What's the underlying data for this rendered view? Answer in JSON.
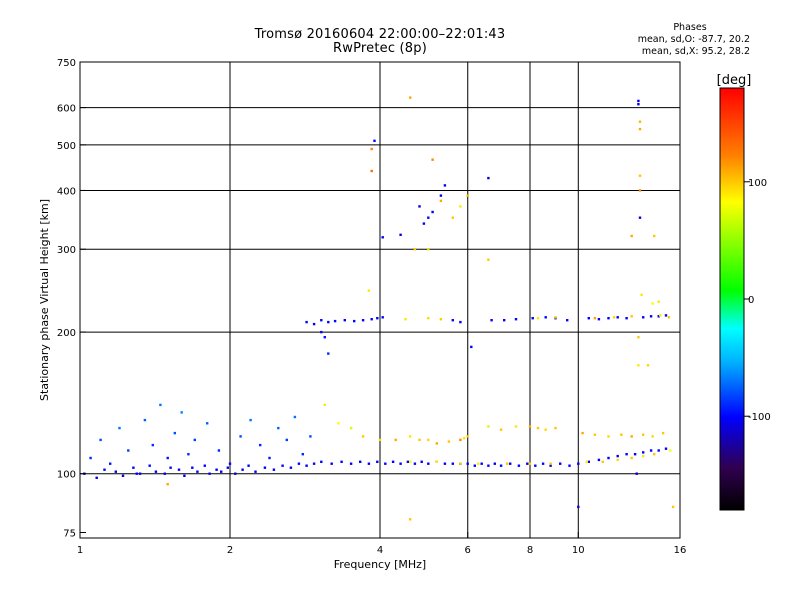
{
  "chart_data": {
    "type": "scatter",
    "title": "Tromsø 20160604 22:00:00–22:01:43",
    "subtitle": "RwPretec (8p)",
    "xlabel": "Frequency [MHz]",
    "ylabel": "Stationary phase Virtual Height [km]",
    "xscale": "log",
    "yscale": "log",
    "xlim": [
      1,
      16
    ],
    "ylim": [
      73,
      750
    ],
    "x_ticks": [
      1,
      2,
      4,
      6,
      8,
      10,
      16
    ],
    "y_ticks": [
      75,
      100,
      200,
      300,
      400,
      500,
      600,
      750
    ],
    "grid": true,
    "colorbar": {
      "label": "[deg]",
      "range": [
        -180,
        180
      ],
      "ticks": [
        -100,
        0,
        100
      ],
      "colormap": "rainbow"
    },
    "stats": {
      "header": "Phases",
      "o_label": "mean, sd,O:",
      "o_values": "-87.7, 20.2",
      "x_label": "mean, sd,X:",
      "x_values": "95.2, 28.2"
    },
    "series": [
      {
        "points": [
          [
            1.05,
            108,
            -90
          ],
          [
            1.1,
            118,
            -80
          ],
          [
            1.15,
            105,
            -95
          ],
          [
            1.2,
            125,
            -70
          ],
          [
            1.25,
            112,
            -85
          ],
          [
            1.3,
            100,
            -100
          ],
          [
            1.35,
            130,
            -75
          ],
          [
            1.4,
            115,
            -88
          ],
          [
            1.45,
            140,
            -70
          ],
          [
            1.5,
            108,
            -95
          ],
          [
            1.55,
            122,
            -80
          ],
          [
            1.6,
            135,
            -65
          ],
          [
            1.65,
            110,
            -90
          ],
          [
            1.7,
            118,
            -85
          ],
          [
            1.8,
            128,
            -75
          ],
          [
            1.9,
            112,
            -92
          ],
          [
            2.0,
            105,
            -100
          ],
          [
            2.1,
            120,
            -80
          ],
          [
            2.2,
            130,
            -70
          ],
          [
            2.3,
            115,
            -90
          ],
          [
            2.4,
            108,
            -95
          ],
          [
            2.5,
            125,
            -75
          ],
          [
            2.6,
            118,
            -85
          ],
          [
            2.7,
            132,
            -70
          ],
          [
            2.8,
            110,
            -90
          ],
          [
            2.9,
            120,
            -80
          ],
          [
            1.02,
            100,
            -105
          ],
          [
            1.08,
            98,
            -110
          ],
          [
            1.12,
            102,
            -100
          ],
          [
            1.18,
            101,
            -105
          ],
          [
            1.22,
            99,
            -110
          ],
          [
            1.28,
            103,
            -100
          ],
          [
            1.32,
            100,
            -105
          ],
          [
            1.38,
            104,
            -98
          ],
          [
            1.42,
            101,
            -102
          ],
          [
            1.48,
            100,
            -106
          ],
          [
            1.52,
            103,
            -100
          ],
          [
            1.58,
            102,
            -104
          ],
          [
            1.62,
            99,
            -108
          ],
          [
            1.68,
            103,
            -100
          ],
          [
            1.72,
            101,
            -105
          ],
          [
            1.78,
            104,
            -100
          ],
          [
            1.82,
            100,
            -106
          ],
          [
            1.88,
            102,
            -103
          ],
          [
            1.92,
            101,
            -105
          ],
          [
            1.98,
            103,
            -100
          ],
          [
            2.05,
            100,
            -106
          ],
          [
            2.12,
            102,
            -102
          ],
          [
            2.18,
            104,
            -100
          ],
          [
            2.25,
            101,
            -104
          ],
          [
            2.35,
            103,
            -101
          ],
          [
            2.45,
            102,
            -103
          ],
          [
            2.55,
            104,
            -100
          ],
          [
            2.65,
            103,
            -102
          ],
          [
            2.75,
            105,
            -100
          ],
          [
            2.85,
            104,
            -101
          ],
          [
            2.95,
            105,
            -100
          ],
          [
            3.05,
            106,
            -100
          ],
          [
            3.2,
            105,
            -102
          ],
          [
            3.35,
            106,
            -100
          ],
          [
            3.5,
            105,
            -101
          ],
          [
            3.65,
            106,
            -100
          ],
          [
            3.8,
            105,
            -102
          ],
          [
            3.95,
            106,
            -100
          ],
          [
            4.1,
            105,
            -101
          ],
          [
            4.25,
            106,
            -100
          ],
          [
            4.4,
            105,
            -102
          ],
          [
            4.55,
            106,
            -100
          ],
          [
            4.7,
            105,
            -100
          ],
          [
            4.85,
            106,
            -101
          ],
          [
            5.0,
            105,
            -102
          ],
          [
            5.2,
            106,
            -100
          ],
          [
            5.4,
            105,
            -101
          ],
          [
            5.6,
            105,
            -100
          ],
          [
            5.8,
            105,
            -102
          ],
          [
            6.0,
            105,
            -101
          ],
          [
            6.2,
            104,
            -100
          ],
          [
            6.4,
            105,
            -101
          ],
          [
            6.6,
            104,
            -100
          ],
          [
            6.8,
            105,
            -102
          ],
          [
            7.0,
            104,
            -100
          ],
          [
            7.3,
            105,
            -101
          ],
          [
            7.6,
            104,
            -100
          ],
          [
            7.9,
            105,
            -102
          ],
          [
            8.2,
            104,
            -100
          ],
          [
            8.5,
            105,
            -101
          ],
          [
            8.8,
            104,
            -100
          ],
          [
            9.2,
            105,
            -101
          ],
          [
            9.6,
            104,
            -100
          ],
          [
            10.0,
            105,
            -101
          ],
          [
            10.5,
            106,
            -100
          ],
          [
            11.0,
            107,
            -101
          ],
          [
            11.5,
            108,
            -100
          ],
          [
            12.0,
            109,
            -101
          ],
          [
            12.5,
            110,
            -100
          ],
          [
            13.0,
            110,
            -101
          ],
          [
            13.5,
            111,
            -100
          ],
          [
            14.0,
            112,
            -101
          ],
          [
            14.5,
            112,
            -100
          ],
          [
            15.0,
            113,
            -101
          ],
          [
            2.85,
            210,
            -100
          ],
          [
            2.95,
            208,
            -105
          ],
          [
            3.05,
            212,
            -100
          ],
          [
            3.15,
            210,
            -102
          ],
          [
            3.25,
            211,
            -100
          ],
          [
            3.4,
            212,
            -101
          ],
          [
            3.55,
            211,
            -100
          ],
          [
            3.7,
            212,
            -102
          ],
          [
            3.85,
            213,
            -100
          ],
          [
            3.95,
            214,
            -101
          ],
          [
            4.05,
            215,
            -100
          ],
          [
            4.8,
            370,
            -110
          ],
          [
            4.9,
            340,
            -105
          ],
          [
            5.0,
            350,
            -100
          ],
          [
            5.1,
            360,
            -102
          ],
          [
            5.3,
            390,
            -110
          ],
          [
            5.4,
            410,
            -105
          ],
          [
            3.9,
            510,
            -100
          ],
          [
            4.05,
            318,
            -105
          ],
          [
            4.4,
            322,
            -110
          ],
          [
            6.6,
            425,
            -110
          ],
          [
            6.1,
            186,
            -100
          ],
          [
            3.1,
            195,
            -95
          ],
          [
            3.15,
            180,
            -90
          ],
          [
            3.05,
            200,
            -100
          ],
          [
            13.2,
            620,
            -105
          ],
          [
            13.2,
            610,
            -110
          ],
          [
            13.3,
            350,
            -108
          ],
          [
            13.1,
            100,
            -110
          ],
          [
            10.0,
            85,
            -110
          ],
          [
            5.6,
            212,
            -100
          ],
          [
            5.8,
            210,
            -101
          ],
          [
            6.7,
            212,
            -100
          ],
          [
            7.1,
            212,
            -102
          ],
          [
            7.5,
            213,
            -100
          ],
          [
            8.1,
            214,
            -101
          ],
          [
            8.6,
            215,
            -100
          ],
          [
            9.0,
            214,
            -102
          ],
          [
            9.5,
            212,
            -100
          ],
          [
            10.5,
            214,
            -101
          ],
          [
            11.0,
            213,
            -100
          ],
          [
            11.5,
            214,
            -102
          ],
          [
            12.0,
            215,
            -100
          ],
          [
            12.5,
            214,
            -101
          ],
          [
            13.5,
            215,
            -100
          ],
          [
            14.0,
            216,
            -102
          ],
          [
            14.5,
            216,
            -100
          ],
          [
            15.0,
            217,
            -101
          ]
        ]
      },
      {
        "points": [
          [
            4.6,
            630,
            110
          ],
          [
            4.7,
            300,
            100
          ],
          [
            5.0,
            300,
            95
          ],
          [
            5.1,
            465,
            120
          ],
          [
            5.3,
            380,
            110
          ],
          [
            5.6,
            350,
            100
          ],
          [
            5.8,
            370,
            90
          ],
          [
            6.0,
            390,
            105
          ],
          [
            3.85,
            490,
            120
          ],
          [
            3.85,
            440,
            130
          ],
          [
            3.8,
            245,
            90
          ],
          [
            4.6,
            80,
            100
          ],
          [
            13.3,
            540,
            110
          ],
          [
            13.3,
            560,
            105
          ],
          [
            13.3,
            430,
            100
          ],
          [
            13.3,
            400,
            120
          ],
          [
            12.8,
            320,
            110
          ],
          [
            14.2,
            320,
            100
          ],
          [
            13.4,
            240,
            90
          ],
          [
            6.6,
            285,
            100
          ],
          [
            3.1,
            140,
            90
          ],
          [
            3.3,
            128,
            80
          ],
          [
            3.5,
            125,
            70
          ],
          [
            3.7,
            120,
            100
          ],
          [
            4.0,
            118,
            95
          ],
          [
            4.3,
            118,
            110
          ],
          [
            4.6,
            120,
            90
          ],
          [
            4.8,
            118,
            100
          ],
          [
            5.0,
            118,
            95
          ],
          [
            5.2,
            116,
            110
          ],
          [
            5.5,
            117,
            100
          ],
          [
            5.8,
            118,
            120
          ],
          [
            5.9,
            119,
            90
          ],
          [
            6.0,
            120,
            100
          ],
          [
            6.6,
            126,
            70
          ],
          [
            7.0,
            124,
            100
          ],
          [
            7.5,
            126,
            90
          ],
          [
            8.0,
            126,
            110
          ],
          [
            8.3,
            125,
            100
          ],
          [
            8.6,
            124,
            95
          ],
          [
            9.0,
            125,
            100
          ],
          [
            10.2,
            122,
            110
          ],
          [
            10.8,
            121,
            100
          ],
          [
            11.5,
            120,
            95
          ],
          [
            12.2,
            121,
            100
          ],
          [
            12.8,
            120,
            110
          ],
          [
            13.5,
            121,
            100
          ],
          [
            14.1,
            120,
            95
          ],
          [
            14.8,
            122,
            100
          ],
          [
            4.6,
            106,
            80
          ],
          [
            5.2,
            106,
            90
          ],
          [
            5.8,
            105,
            100
          ],
          [
            6.3,
            105,
            90
          ],
          [
            7.2,
            105,
            100
          ],
          [
            8.0,
            105,
            95
          ],
          [
            8.8,
            105,
            100
          ],
          [
            10.4,
            106,
            90
          ],
          [
            11.2,
            106,
            100
          ],
          [
            12.0,
            107,
            95
          ],
          [
            12.8,
            108,
            100
          ],
          [
            13.5,
            109,
            90
          ],
          [
            14.2,
            110,
            100
          ],
          [
            15.3,
            112,
            80
          ],
          [
            1.5,
            95,
            110
          ],
          [
            15.5,
            85,
            100
          ],
          [
            4.5,
            213,
            90
          ],
          [
            5.0,
            214,
            95
          ],
          [
            5.3,
            213,
            100
          ],
          [
            8.3,
            214,
            90
          ],
          [
            9.0,
            215,
            100
          ],
          [
            10.8,
            214,
            110
          ],
          [
            11.8,
            215,
            95
          ],
          [
            12.8,
            216,
            100
          ],
          [
            14.6,
            217,
            90
          ],
          [
            15.2,
            215,
            100
          ],
          [
            13.2,
            170,
            90
          ],
          [
            13.2,
            195,
            100
          ],
          [
            13.8,
            170,
            95
          ],
          [
            14.1,
            230,
            80
          ],
          [
            14.5,
            232,
            90
          ]
        ]
      }
    ]
  }
}
